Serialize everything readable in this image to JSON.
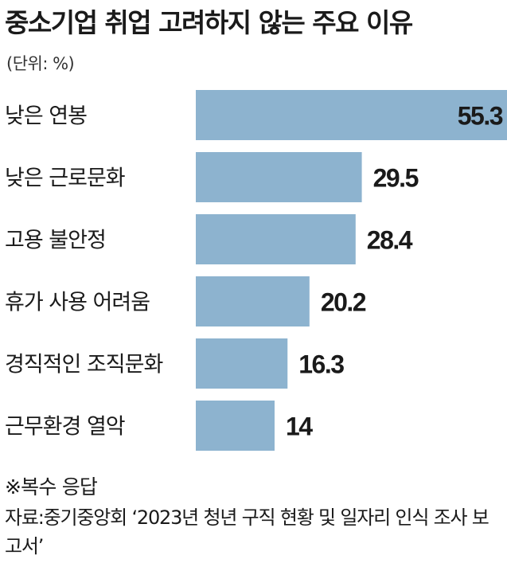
{
  "title": "중소기업 취업 고려하지 않는 주요 이유",
  "unit_label": "(단위: %)",
  "footnote": "※복수 응답",
  "source": "자료:중기중앙회 ‘2023년 청년 구직 현황 및 일자리 인식 조사 보고서’",
  "chart_data": {
    "type": "bar",
    "orientation": "horizontal",
    "categories": [
      "낮은 연봉",
      "낮은 근로문화",
      "고용 불안정",
      "휴가 사용 어려움",
      "경직적인 조직문화",
      "근무환경 열악"
    ],
    "values": [
      55.3,
      29.5,
      28.4,
      20.2,
      16.3,
      14
    ],
    "value_labels": [
      "55.3",
      "29.5",
      "28.4",
      "20.2",
      "16.3",
      "14"
    ],
    "bar_color": "#8db3cf",
    "grid": false,
    "legend": "none"
  }
}
